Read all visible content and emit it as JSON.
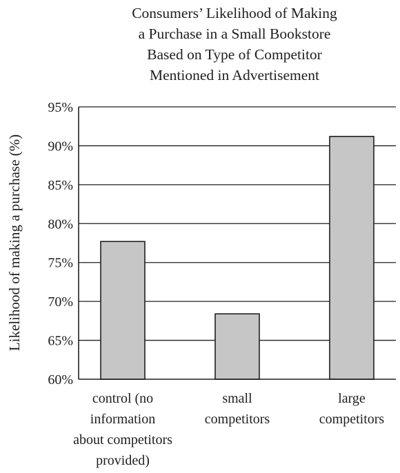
{
  "chart_data": {
    "type": "bar",
    "title_lines": [
      "Consumers’ Likelihood of Making",
      "a Purchase in a Small Bookstore",
      "Based on Type of Competitor",
      "Mentioned in Advertisement"
    ],
    "ylabel": "Likelihood of making a purchase (%)",
    "xlabel": "",
    "ylim": [
      60,
      95
    ],
    "yticks": [
      "60%",
      "65%",
      "70%",
      "75%",
      "80%",
      "85%",
      "90%",
      "95%"
    ],
    "grid": true,
    "categories": [
      [
        "control (no",
        "information",
        "about competitors",
        "provided)"
      ],
      [
        "small",
        "competitors"
      ],
      [
        "large",
        "competitors"
      ]
    ],
    "values": [
      77.7,
      68.4,
      91.2
    ],
    "colors": {
      "bar_fill": "#c6c6c6",
      "stroke": "#1e1e1e"
    }
  }
}
